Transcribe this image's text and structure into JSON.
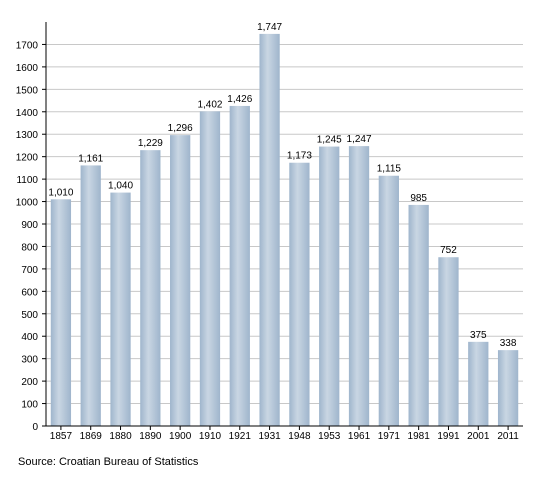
{
  "chart_data": {
    "type": "bar",
    "categories": [
      "1857",
      "1869",
      "1880",
      "1890",
      "1900",
      "1910",
      "1921",
      "1931",
      "1948",
      "1953",
      "1961",
      "1971",
      "1981",
      "1991",
      "2001",
      "2011"
    ],
    "values": [
      1010,
      1161,
      1040,
      1229,
      1296,
      1402,
      1426,
      1747,
      1173,
      1245,
      1247,
      1115,
      985,
      752,
      375,
      338
    ],
    "value_labels": [
      "1,010",
      "1,161",
      "1,040",
      "1,229",
      "1,296",
      "1,402",
      "1,426",
      "1,747",
      "1,173",
      "1,245",
      "1,247",
      "1,115",
      "985",
      "752",
      "375",
      "338"
    ],
    "ylim": [
      0,
      1800
    ],
    "yticks": [
      0,
      100,
      200,
      300,
      400,
      500,
      600,
      700,
      800,
      900,
      1000,
      1100,
      1200,
      1300,
      1400,
      1500,
      1600,
      1700
    ],
    "grid": true,
    "bar_color": "#9fb5cc",
    "bar_highlight_color": "#c9d6e3",
    "grid_color": "#c8c8c8",
    "source": "Source: Croatian Bureau of Statistics"
  }
}
